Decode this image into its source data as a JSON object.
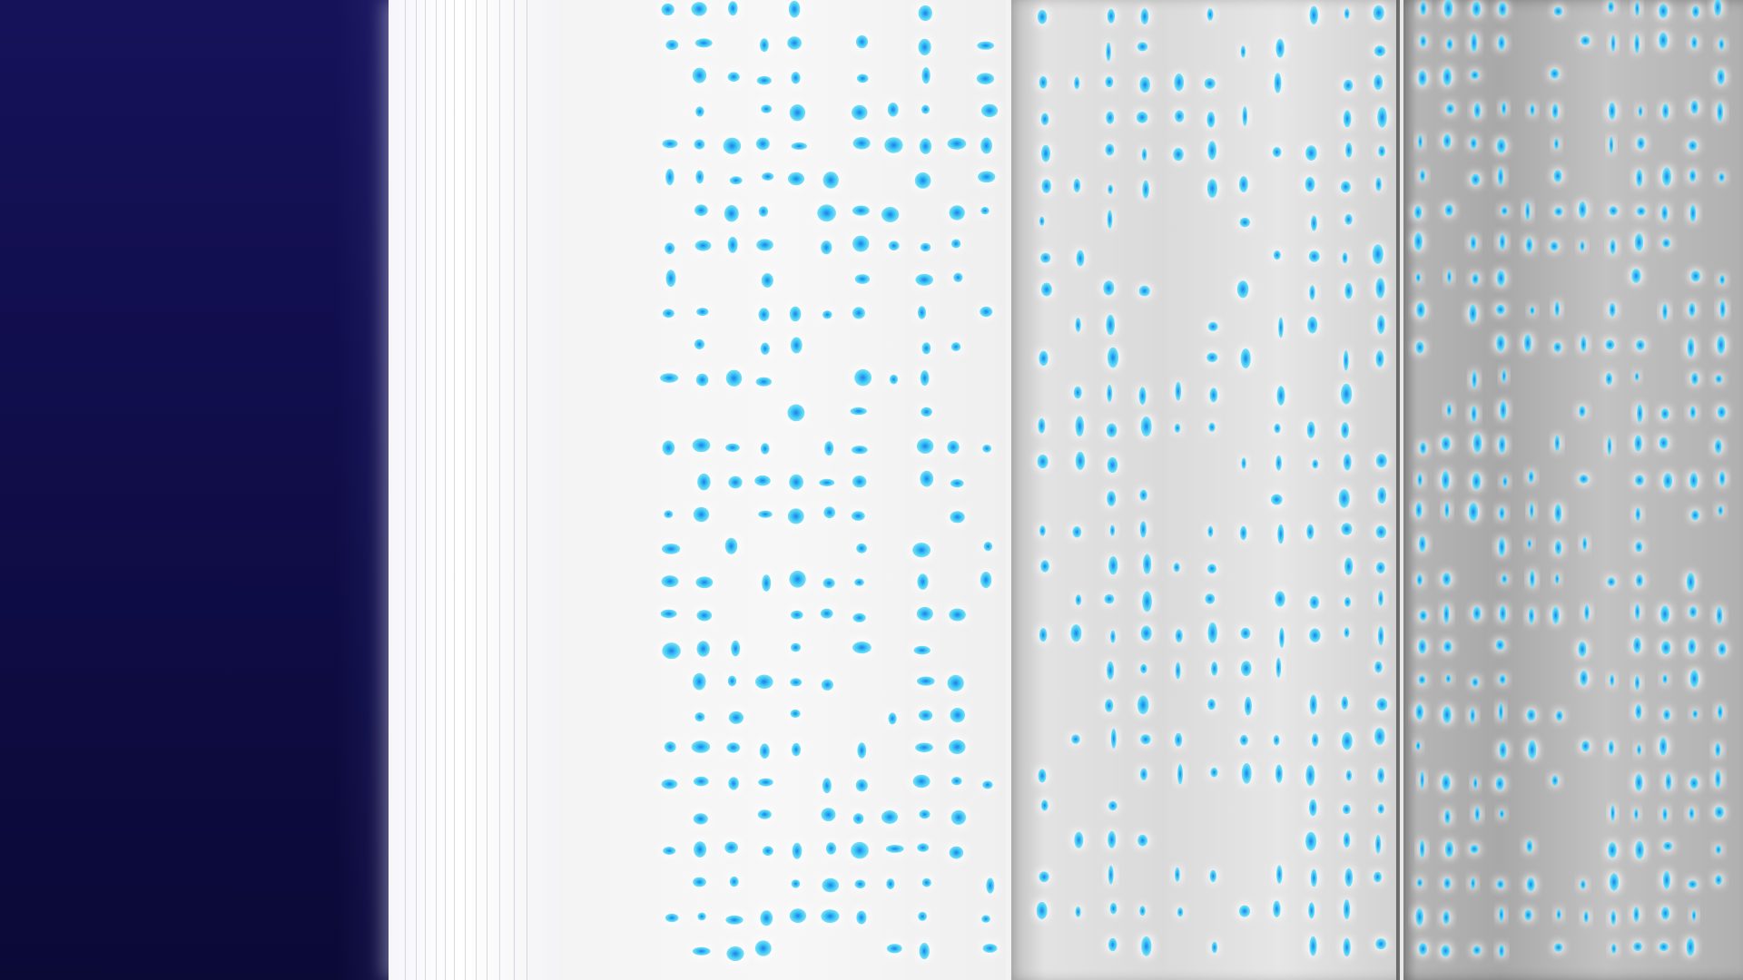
{
  "colors": {
    "backdrop": "#100d4a",
    "page": "#f4f4f4",
    "glyph_core": "#1a8cf0",
    "glyph_mid": "#3fc8f2",
    "glyph_glow": "#ffffff"
  },
  "icons": {
    "glyph": "glowing-dot-glyph"
  }
}
